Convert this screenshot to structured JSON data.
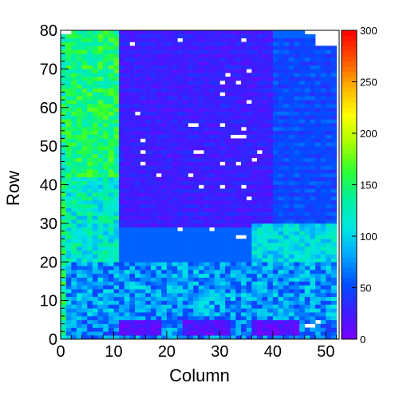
{
  "chart_data": {
    "type": "heatmap",
    "title": "",
    "xlabel": "Column",
    "ylabel": "Row",
    "xlim": [
      0,
      52.5
    ],
    "ylim": [
      0,
      80
    ],
    "xticks": [
      0,
      10,
      20,
      30,
      40,
      50
    ],
    "yticks": [
      0,
      10,
      20,
      30,
      40,
      50,
      60,
      70,
      80
    ],
    "colorbar": {
      "min": 0,
      "max": 300,
      "ticks": [
        0,
        50,
        100,
        150,
        200,
        250,
        300
      ],
      "palette": [
        "#7a00ff",
        "#3b1eff",
        "#0050ff",
        "#00a8ff",
        "#00e8e0",
        "#00f0a0",
        "#30ff30",
        "#a8ff00",
        "#ffff00",
        "#ffb000",
        "#ff5000",
        "#ff0000"
      ]
    },
    "grid": false,
    "legend": "colorbar-right",
    "cell_grid": {
      "columns": 52,
      "rows": 80
    },
    "regions": [
      {
        "name": "left-strip",
        "col_range": [
          0,
          1
        ],
        "row_range": [
          0,
          80
        ],
        "value_range": [
          100,
          170
        ]
      },
      {
        "name": "left-block-upper",
        "col_range": [
          1,
          11
        ],
        "row_range": [
          42,
          80
        ],
        "value_range": [
          120,
          175
        ]
      },
      {
        "name": "left-block-lower",
        "col_range": [
          1,
          11
        ],
        "row_range": [
          20,
          42
        ],
        "value_range": [
          85,
          150
        ]
      },
      {
        "name": "upper-purple-field",
        "col_range": [
          11,
          40
        ],
        "row_range": [
          29,
          80
        ],
        "value_range": [
          8,
          45
        ]
      },
      {
        "name": "upper-right-field",
        "col_range": [
          40,
          52
        ],
        "row_range": [
          30,
          78
        ],
        "value_range": [
          30,
          70
        ]
      },
      {
        "name": "right-mid-block",
        "col_range": [
          36,
          52
        ],
        "row_range": [
          20,
          30
        ],
        "value_range": [
          80,
          130
        ]
      },
      {
        "name": "lower-band",
        "col_range": [
          1,
          52
        ],
        "row_range": [
          6,
          20
        ],
        "value_range": [
          45,
          110
        ]
      },
      {
        "name": "bottom-row-band",
        "col_range": [
          1,
          52
        ],
        "row_range": [
          0,
          6
        ],
        "value_range": [
          40,
          100
        ]
      },
      {
        "name": "bottom-low-block-1",
        "col_range": [
          11,
          19
        ],
        "row_range": [
          1,
          5
        ],
        "value_range": [
          0,
          30
        ]
      },
      {
        "name": "bottom-low-block-2",
        "col_range": [
          23,
          32
        ],
        "row_range": [
          1,
          5
        ],
        "value_range": [
          0,
          30
        ]
      },
      {
        "name": "bottom-low-block-3",
        "col_range": [
          36,
          45
        ],
        "row_range": [
          1,
          5
        ],
        "value_range": [
          0,
          30
        ]
      }
    ],
    "empty_cells": [
      [
        13,
        76
      ],
      [
        22,
        77
      ],
      [
        34,
        77
      ],
      [
        35,
        69
      ],
      [
        31,
        68
      ],
      [
        33,
        66
      ],
      [
        30,
        66
      ],
      [
        30,
        63
      ],
      [
        35,
        61
      ],
      [
        14,
        58
      ],
      [
        24,
        55
      ],
      [
        25,
        55
      ],
      [
        30,
        55
      ],
      [
        34,
        54
      ],
      [
        32,
        52
      ],
      [
        33,
        52
      ],
      [
        34,
        52
      ],
      [
        15,
        51
      ],
      [
        15,
        48
      ],
      [
        25,
        48
      ],
      [
        26,
        48
      ],
      [
        37,
        48
      ],
      [
        36,
        46
      ],
      [
        15,
        45
      ],
      [
        30,
        45
      ],
      [
        33,
        45
      ],
      [
        18,
        42
      ],
      [
        24,
        42
      ],
      [
        26,
        39
      ],
      [
        30,
        39
      ],
      [
        34,
        39
      ],
      [
        35,
        36
      ],
      [
        22,
        28
      ],
      [
        28,
        28
      ],
      [
        33,
        26
      ],
      [
        34,
        26
      ],
      [
        46,
        3
      ],
      [
        47,
        3
      ],
      [
        48,
        4
      ]
    ]
  }
}
